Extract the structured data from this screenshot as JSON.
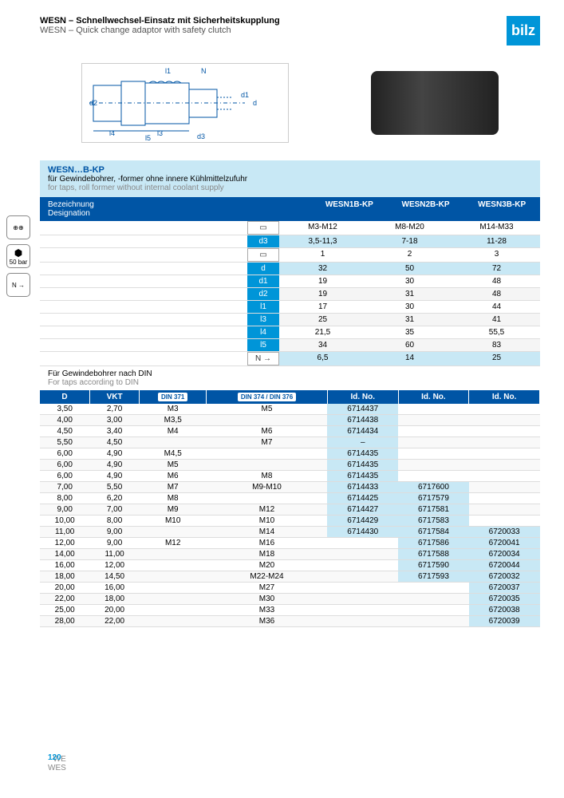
{
  "header": {
    "title_de": "WESN – Schnellwechsel-Einsatz mit Sicherheitskupplung",
    "title_en": "WESN – Quick change adaptor with safety clutch",
    "logo": "bilz"
  },
  "side_icons": [
    {
      "label": "⊕⊕"
    },
    {
      "label": "50 bar"
    },
    {
      "label": "N →"
    }
  ],
  "info": {
    "title": "WESN…B-KP",
    "de": "für Gewindebohrer, -former ohne innere Kühlmittelzufuhr",
    "en": "for taps, roll former without internal coolant supply"
  },
  "spec_header": {
    "label_de": "Bezeichnung",
    "label_en": "Designation",
    "cols": [
      "WESN1B-KP",
      "WESN2B-KP",
      "WESN3B-KP"
    ]
  },
  "specs": [
    {
      "param": "",
      "icon": true,
      "vals": [
        "M3-M12",
        "M8-M20",
        "M14-M33"
      ],
      "hl": false
    },
    {
      "param": "d3",
      "vals": [
        "3,5-11,3",
        "7-18",
        "11-28"
      ],
      "hl": true
    },
    {
      "param": "",
      "icon": true,
      "vals": [
        "1",
        "2",
        "3"
      ],
      "hl": false
    },
    {
      "param": "d",
      "vals": [
        "32",
        "50",
        "72"
      ],
      "hl": true
    },
    {
      "param": "d1",
      "vals": [
        "19",
        "30",
        "48"
      ],
      "hl": false
    },
    {
      "param": "d2",
      "vals": [
        "19",
        "31",
        "48"
      ],
      "hl": false
    },
    {
      "param": "l1",
      "vals": [
        "17",
        "30",
        "44"
      ],
      "hl": false
    },
    {
      "param": "l3",
      "vals": [
        "25",
        "31",
        "41"
      ],
      "hl": false
    },
    {
      "param": "l4",
      "vals": [
        "21,5",
        "35",
        "55,5"
      ],
      "hl": false
    },
    {
      "param": "l5",
      "vals": [
        "34",
        "60",
        "83"
      ],
      "hl": false
    },
    {
      "param": "",
      "icon": true,
      "icon_text": "N →",
      "vals": [
        "6,5",
        "14",
        "25"
      ],
      "hl": true
    }
  ],
  "tap_note": {
    "de": "Für Gewindebohrer nach DIN",
    "en": "For taps according to DIN"
  },
  "table": {
    "headers": [
      "D",
      "VKT",
      "DIN 371",
      "DIN 374 / DIN 376",
      "Id. No.",
      "Id. No.",
      "Id. No."
    ],
    "rows": [
      [
        "3,50",
        "2,70",
        "M3",
        "M5",
        "6714437",
        "",
        ""
      ],
      [
        "4,00",
        "3,00",
        "M3,5",
        "",
        "6714438",
        "",
        ""
      ],
      [
        "4,50",
        "3,40",
        "M4",
        "M6",
        "6714434",
        "",
        ""
      ],
      [
        "5,50",
        "4,50",
        "",
        "M7",
        "–",
        "",
        ""
      ],
      [
        "6,00",
        "4,90",
        "M4,5",
        "",
        "6714435",
        "",
        ""
      ],
      [
        "6,00",
        "4,90",
        "M5",
        "",
        "6714435",
        "",
        ""
      ],
      [
        "6,00",
        "4,90",
        "M6",
        "M8",
        "6714435",
        "",
        ""
      ],
      [
        "7,00",
        "5,50",
        "M7",
        "M9-M10",
        "6714433",
        "6717600",
        ""
      ],
      [
        "8,00",
        "6,20",
        "M8",
        "",
        "6714425",
        "6717579",
        ""
      ],
      [
        "9,00",
        "7,00",
        "M9",
        "M12",
        "6714427",
        "6717581",
        ""
      ],
      [
        "10,00",
        "8,00",
        "M10",
        "M10",
        "6714429",
        "6717583",
        ""
      ],
      [
        "11,00",
        "9,00",
        "",
        "M14",
        "6714430",
        "6717584",
        "6720033"
      ],
      [
        "12,00",
        "9,00",
        "M12",
        "M16",
        "",
        "6717586",
        "6720041"
      ],
      [
        "14,00",
        "11,00",
        "",
        "M18",
        "",
        "6717588",
        "6720034"
      ],
      [
        "16,00",
        "12,00",
        "",
        "M20",
        "",
        "6717590",
        "6720044"
      ],
      [
        "18,00",
        "14,50",
        "",
        "M22-M24",
        "",
        "6717593",
        "6720032"
      ],
      [
        "20,00",
        "16,00",
        "",
        "M27",
        "",
        "",
        "6720037"
      ],
      [
        "22,00",
        "18,00",
        "",
        "M30",
        "",
        "",
        "6720035"
      ],
      [
        "25,00",
        "20,00",
        "",
        "M33",
        "",
        "",
        "6720038"
      ],
      [
        "28,00",
        "22,00",
        "",
        "M36",
        "",
        "",
        "6720039"
      ]
    ]
  },
  "footer": {
    "left1": "WE",
    "left2": "WES",
    "page": "120"
  }
}
